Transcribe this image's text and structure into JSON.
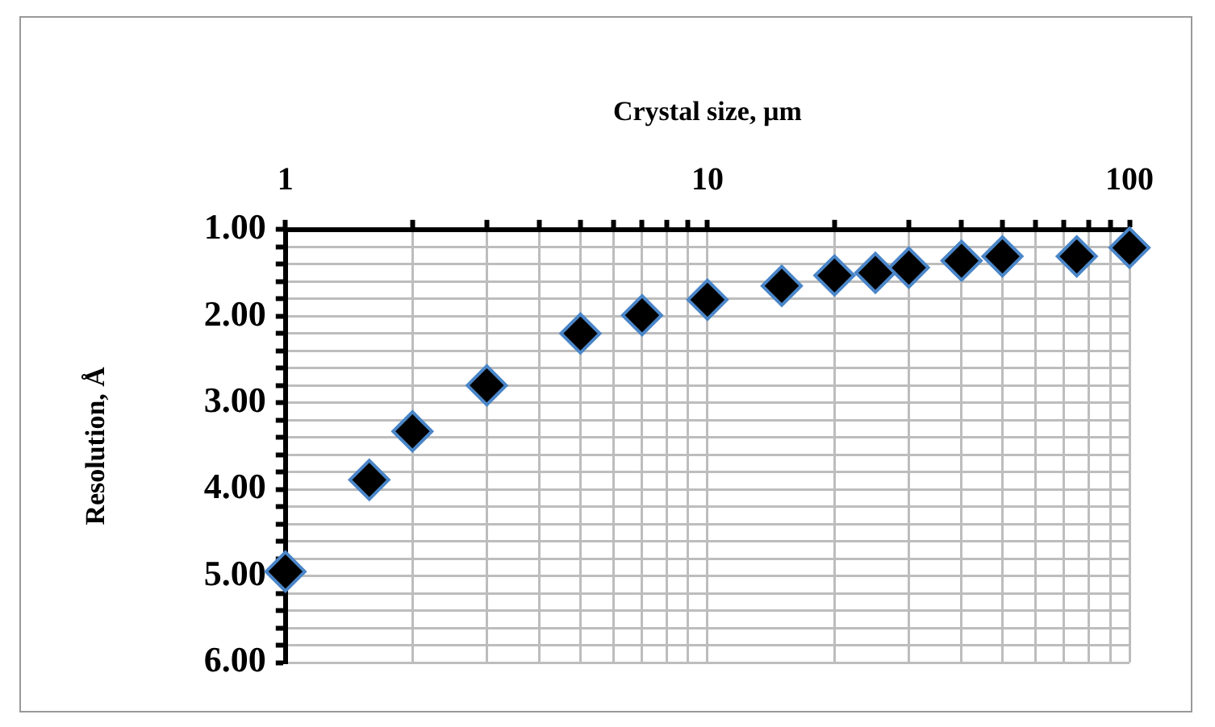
{
  "chart_data": {
    "type": "scatter",
    "xlabel": "Crystal size, µm",
    "ylabel": "Resolution, Å",
    "x": [
      1,
      1.58,
      2,
      3,
      5,
      7,
      10,
      15,
      20,
      25,
      30,
      40,
      50,
      75,
      100
    ],
    "series": [
      {
        "color": "#000000",
        "values": [
          4.95,
          3.89,
          3.33,
          2.8,
          2.2,
          1.99,
          1.81,
          1.65,
          1.53,
          1.5,
          1.44,
          1.36,
          1.31,
          1.31,
          1.21
        ]
      }
    ],
    "log": "x",
    "xlim": [
      1,
      100
    ],
    "ylim": [
      6,
      1
    ],
    "xticks": [
      1,
      {
        "value": 2,
        "label": null
      },
      {
        "value": 3,
        "label": null
      },
      {
        "value": 4,
        "label": null
      },
      {
        "value": 5,
        "label": null
      },
      {
        "value": 6,
        "label": null
      },
      {
        "value": 7,
        "label": null
      },
      {
        "value": 8,
        "label": null
      },
      {
        "value": 9,
        "label": null
      },
      10,
      {
        "value": 20,
        "label": null
      },
      {
        "value": 30,
        "label": null
      },
      {
        "value": 40,
        "label": null
      },
      {
        "value": 50,
        "label": null
      },
      {
        "value": 60,
        "label": null
      },
      {
        "value": 70,
        "label": null
      },
      {
        "value": 80,
        "label": null
      },
      {
        "value": 90,
        "label": null
      },
      100
    ],
    "yticks": [
      {
        "value": 1,
        "label": "1.00"
      },
      {
        "value": 1.2,
        "label": null
      },
      {
        "value": 1.4,
        "label": null
      },
      {
        "value": 1.6,
        "label": null
      },
      {
        "value": 1.8,
        "label": null
      },
      {
        "value": 2,
        "label": "2.00"
      },
      {
        "value": 2.2,
        "label": null
      },
      {
        "value": 2.4,
        "label": null
      },
      {
        "value": 2.6,
        "label": null
      },
      {
        "value": 2.8,
        "label": null
      },
      {
        "value": 3,
        "label": "3.00"
      },
      {
        "value": 3.2,
        "label": null
      },
      {
        "value": 3.4,
        "label": null
      },
      {
        "value": 3.6,
        "label": null
      },
      {
        "value": 3.8,
        "label": null
      },
      {
        "value": 4,
        "label": "4.00"
      },
      {
        "value": 4.2,
        "label": null
      },
      {
        "value": 4.4,
        "label": null
      },
      {
        "value": 4.6,
        "label": null
      },
      {
        "value": 4.8,
        "label": null
      },
      {
        "value": 5,
        "label": "5.00"
      },
      {
        "value": 5.2,
        "label": null
      },
      {
        "value": 5.4,
        "label": null
      },
      {
        "value": 5.6,
        "label": null
      },
      {
        "value": 5.8,
        "label": null
      },
      {
        "value": 6,
        "label": "6.00"
      }
    ],
    "grid": true,
    "marker": "diamond",
    "legend": false
  }
}
